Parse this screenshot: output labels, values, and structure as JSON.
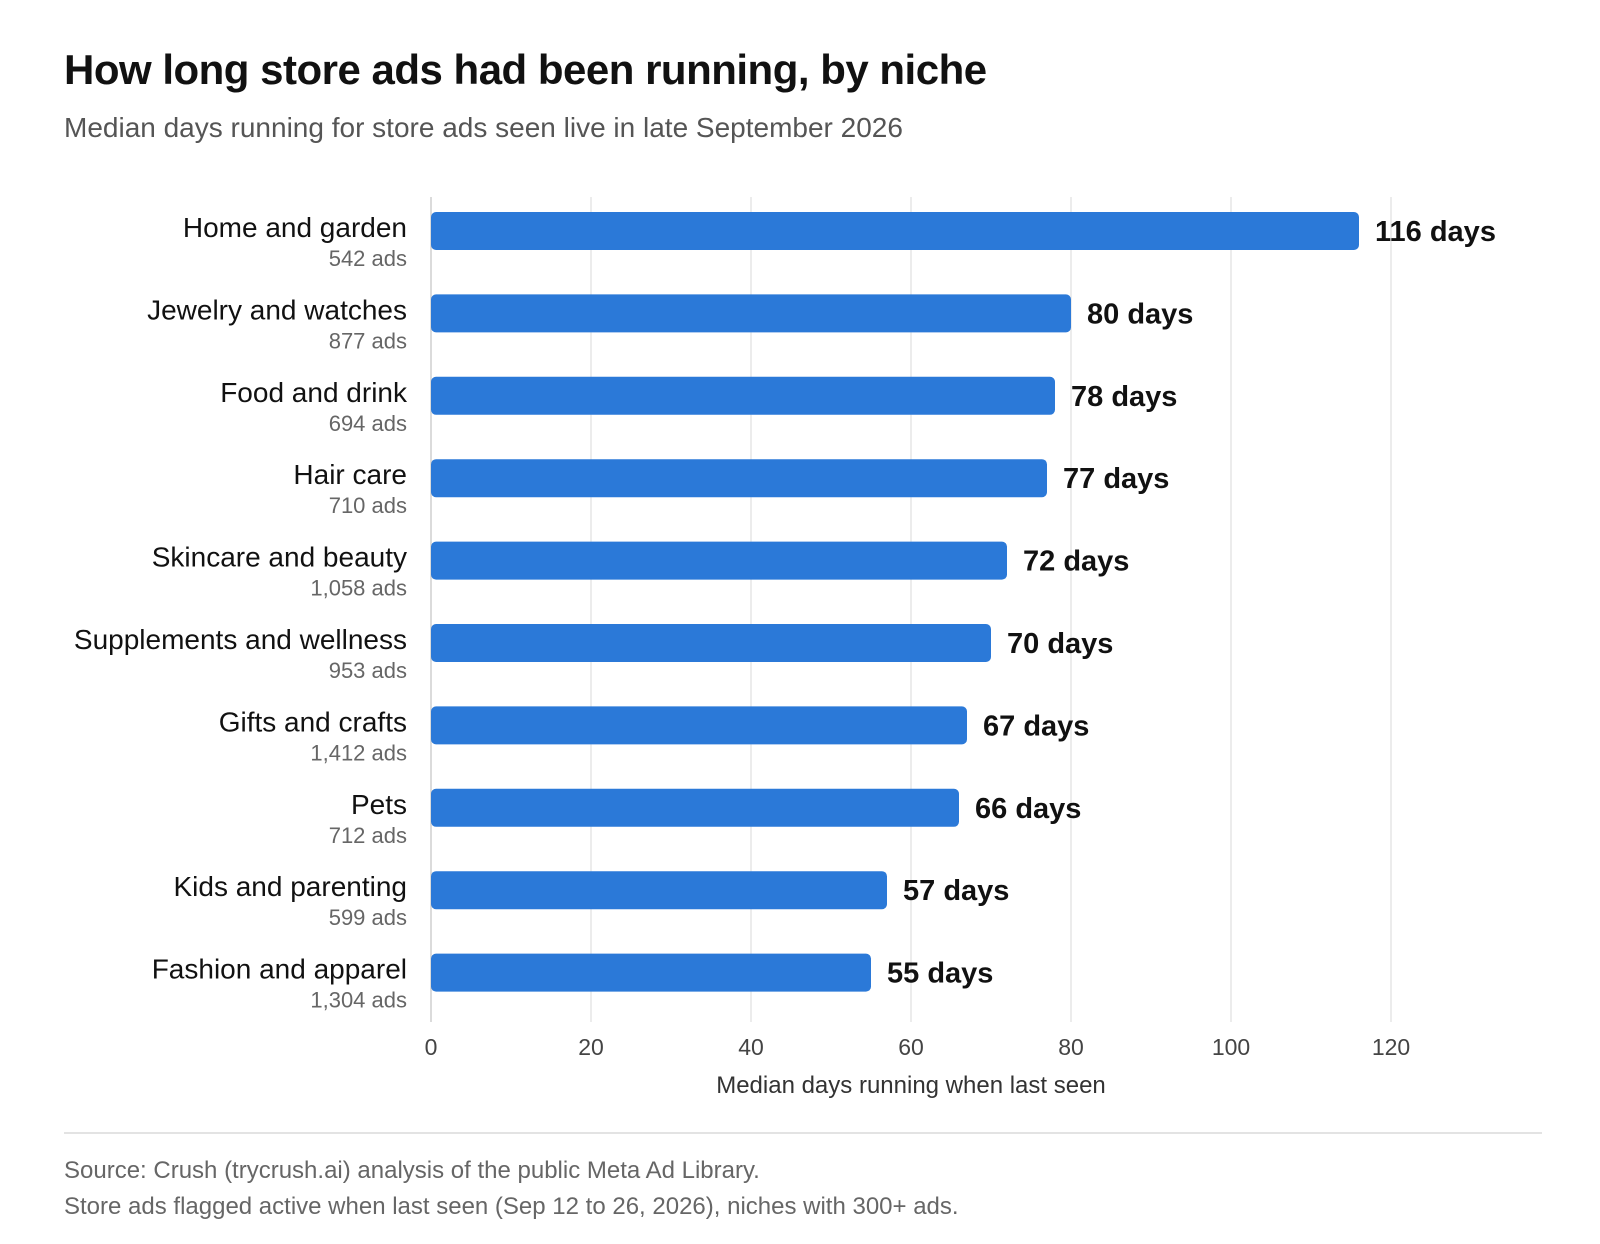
{
  "chart_data": {
    "type": "bar",
    "orientation": "horizontal",
    "title": "How long store ads had been running, by niche",
    "subtitle": "Median days running for store ads seen live in late September 2026",
    "xlabel": "Median days running when last seen",
    "xlim": [
      0,
      134
    ],
    "xticks": [
      0,
      20,
      40,
      60,
      80,
      100,
      120
    ],
    "grid": true,
    "categories": [
      "Home and garden",
      "Jewelry and watches",
      "Food and drink",
      "Hair care",
      "Skincare and beauty",
      "Supplements and wellness",
      "Gifts and crafts",
      "Pets",
      "Kids and parenting",
      "Fashion and apparel"
    ],
    "counts": [
      "542 ads",
      "877 ads",
      "694 ads",
      "710 ads",
      "1,058 ads",
      "953 ads",
      "1,412 ads",
      "712 ads",
      "599 ads",
      "1,304 ads"
    ],
    "values": [
      116,
      80,
      78,
      77,
      72,
      70,
      67,
      66,
      57,
      55
    ],
    "value_labels": [
      "116 days",
      "80 days",
      "78 days",
      "77 days",
      "72 days",
      "70 days",
      "67 days",
      "66 days",
      "57 days",
      "55 days"
    ],
    "bar_color": "#2b79d8"
  },
  "footnotes": [
    "Source: Crush (trycrush.ai) analysis of the public Meta Ad Library.",
    "Store ads flagged active when last seen (Sep 12 to 26, 2026), niches with 300+ ads."
  ]
}
